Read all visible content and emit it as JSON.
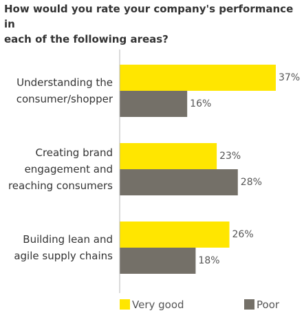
{
  "chart_data": {
    "type": "bar",
    "orientation": "horizontal",
    "title": "How would you rate your company's performance in\neach of the following areas?",
    "categories": [
      [
        "Understanding the",
        "consumer/shopper"
      ],
      [
        "Creating brand",
        "engagement and",
        "reaching consumers"
      ],
      [
        "Building lean and",
        "agile supply chains"
      ]
    ],
    "series": [
      {
        "name": "Very good",
        "color": "#FFE600",
        "values": [
          37,
          23,
          26
        ],
        "labels": [
          "37%",
          "23%",
          "26%"
        ]
      },
      {
        "name": "Poor",
        "color": "#747068",
        "values": [
          16,
          28,
          18
        ],
        "labels": [
          "16%",
          "28%",
          "18%"
        ]
      }
    ],
    "xlim": [
      0,
      40
    ],
    "unit": "%",
    "legend": "bottom",
    "grid": false
  }
}
